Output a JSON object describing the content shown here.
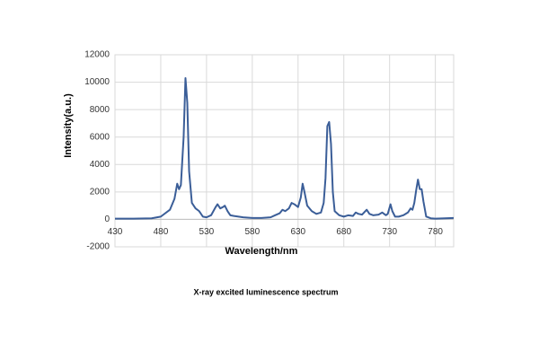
{
  "chart_data": {
    "type": "line",
    "title": "X-ray excited luminescence spectrum",
    "x_label": "Wavelength/nm",
    "y_label": "Intensity(a.u.)",
    "color": "#3b5e98",
    "grid": true,
    "xlim": [
      430,
      800
    ],
    "ylim": [
      -2000,
      12000
    ],
    "xticks": [
      430,
      480,
      530,
      580,
      630,
      680,
      730,
      780
    ],
    "yticks": [
      -2000,
      0,
      2000,
      4000,
      6000,
      8000,
      10000,
      12000
    ],
    "x": [
      430,
      450,
      470,
      480,
      490,
      495,
      498,
      500,
      502,
      505,
      507,
      509,
      511,
      514,
      518,
      522,
      526,
      530,
      535,
      540,
      542,
      545,
      548,
      550,
      553,
      556,
      560,
      570,
      580,
      590,
      600,
      605,
      610,
      613,
      616,
      620,
      623,
      626,
      630,
      633,
      635,
      637,
      640,
      645,
      650,
      655,
      658,
      660,
      662,
      664,
      666,
      668,
      670,
      675,
      680,
      685,
      690,
      693,
      696,
      700,
      705,
      708,
      712,
      718,
      722,
      726,
      728,
      731,
      733,
      736,
      740,
      745,
      750,
      753,
      755,
      757,
      759,
      761,
      763,
      765,
      767,
      770,
      775,
      780,
      790,
      800
    ],
    "values": [
      50,
      50,
      80,
      200,
      700,
      1500,
      2600,
      2200,
      2500,
      6000,
      10300,
      8500,
      3500,
      1200,
      800,
      600,
      200,
      150,
      300,
      900,
      1100,
      800,
      900,
      1000,
      600,
      300,
      250,
      150,
      100,
      100,
      150,
      300,
      450,
      700,
      600,
      800,
      1200,
      1100,
      900,
      1600,
      2600,
      2000,
      1000,
      600,
      400,
      500,
      1200,
      3000,
      6800,
      7100,
      5500,
      2000,
      600,
      300,
      200,
      300,
      250,
      500,
      400,
      350,
      700,
      400,
      300,
      350,
      500,
      300,
      400,
      1100,
      600,
      200,
      200,
      300,
      500,
      800,
      700,
      1200,
      2100,
      2900,
      2200,
      2200,
      1300,
      200,
      80,
      50,
      80,
      100
    ]
  }
}
